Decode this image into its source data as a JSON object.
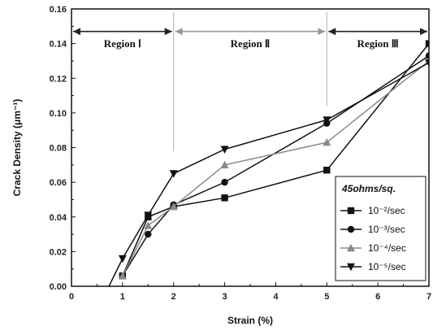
{
  "chart_data": {
    "type": "line",
    "xlabel": "Strain (%)",
    "ylabel": "Crack Density (μm⁻¹)",
    "xlim": [
      0,
      7
    ],
    "ylim": [
      0,
      0.16
    ],
    "x_ticks": [
      "0",
      "1",
      "2",
      "3",
      "4",
      "5",
      "6",
      "7"
    ],
    "y_ticks": [
      "0.00",
      "0.02",
      "0.04",
      "0.06",
      "0.08",
      "0.10",
      "0.12",
      "0.14",
      "0.16"
    ],
    "legend_title": "45ohms/sq.",
    "legend_position": "bottom-right",
    "regions": [
      {
        "label": "Region Ⅰ",
        "from": 0,
        "to": 2
      },
      {
        "label": "Region Ⅱ",
        "from": 2,
        "to": 5
      },
      {
        "label": "Region Ⅲ",
        "from": 5,
        "to": 7
      }
    ],
    "series": [
      {
        "name": "10⁻²/sec",
        "marker": "square",
        "color": "#111111",
        "points": [
          [
            1.0,
            0.006
          ],
          [
            1.5,
            0.04
          ],
          [
            2.0,
            0.046
          ],
          [
            3.0,
            0.051
          ],
          [
            5.0,
            0.067
          ],
          [
            7.0,
            0.14
          ]
        ]
      },
      {
        "name": "10⁻³/sec",
        "marker": "circle",
        "color": "#111111",
        "points": [
          [
            1.0,
            0.006
          ],
          [
            1.5,
            0.03
          ],
          [
            2.0,
            0.047
          ],
          [
            3.0,
            0.06
          ],
          [
            5.0,
            0.094
          ],
          [
            7.0,
            0.133
          ]
        ]
      },
      {
        "name": "10⁻⁴/sec",
        "marker": "triangle-up",
        "color": "#8a8a8a",
        "points": [
          [
            1.0,
            0.006
          ],
          [
            1.5,
            0.035
          ],
          [
            2.0,
            0.046
          ],
          [
            3.0,
            0.07
          ],
          [
            5.0,
            0.083
          ],
          [
            7.0,
            0.13
          ]
        ]
      },
      {
        "name": "10⁻⁵/sec",
        "marker": "triangle-down",
        "color": "#111111",
        "points": [
          [
            0.7,
            -0.002
          ],
          [
            1.0,
            0.016
          ],
          [
            1.5,
            0.041
          ],
          [
            2.0,
            0.065
          ],
          [
            3.0,
            0.079
          ],
          [
            5.0,
            0.096
          ],
          [
            7.0,
            0.129
          ]
        ]
      }
    ]
  }
}
